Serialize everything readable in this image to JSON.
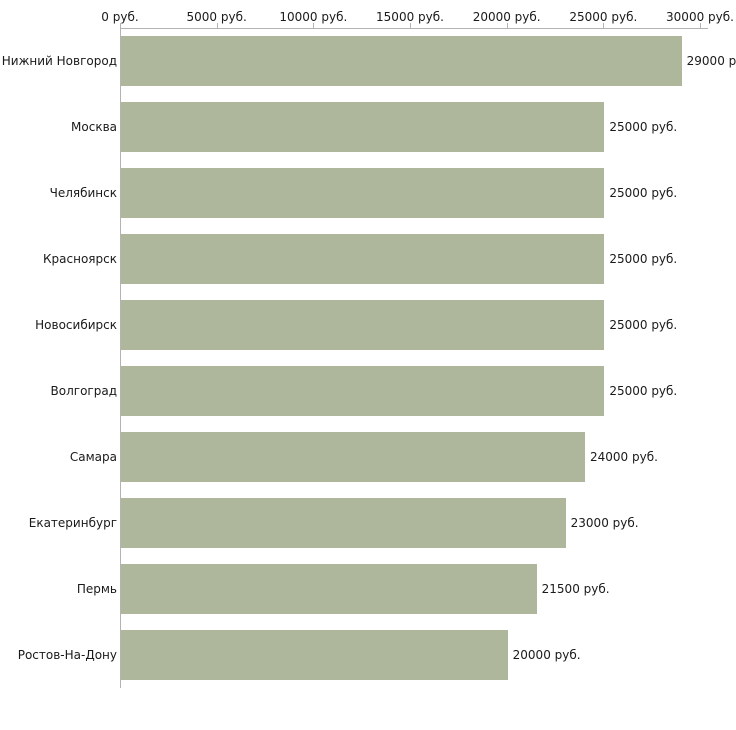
{
  "chart_data": {
    "type": "bar",
    "orientation": "horizontal",
    "title": "",
    "xlabel": "",
    "ylabel": "",
    "categories": [
      "Нижний Новгород",
      "Москва",
      "Челябинск",
      "Красноярск",
      "Новосибирск",
      "Волгоград",
      "Самара",
      "Екатеринбург",
      "Пермь",
      "Ростов-На-Дону"
    ],
    "values": [
      29000,
      25000,
      25000,
      25000,
      25000,
      25000,
      24000,
      23000,
      21500,
      20000
    ],
    "value_labels": [
      "29000 р",
      "25000 руб.",
      "25000 руб.",
      "25000 руб.",
      "25000 руб.",
      "25000 руб.",
      "24000 руб.",
      "23000 руб.",
      "21500 руб.",
      "20000 руб."
    ],
    "x_ticks": [
      0,
      5000,
      10000,
      15000,
      20000,
      25000,
      30000
    ],
    "x_tick_labels": [
      "0 руб.",
      "5000 руб.",
      "10000 руб.",
      "15000 руб.",
      "20000 руб.",
      "25000 руб.",
      "30000 руб."
    ],
    "xlim": [
      0,
      30000
    ],
    "grid": false,
    "legend": false,
    "bar_color": "#aeb69c",
    "axis_color": "#b3b3b3",
    "text_color": "#1a1a1a",
    "background_color": "#ffffff"
  }
}
